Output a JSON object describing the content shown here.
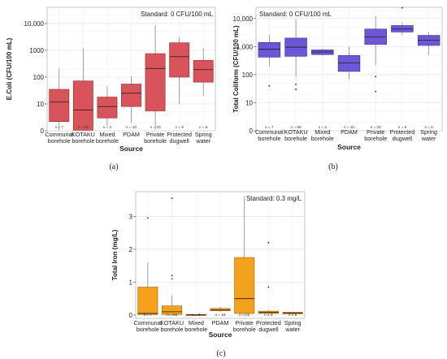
{
  "chart_data": [
    {
      "type": "boxplot",
      "label": "(a)",
      "ylabel": "E.Coli (CFU/100 mL)",
      "xlabel": "Source",
      "annotation": "Standard: 0 CFU/100 mL",
      "yscale": "log",
      "ylim": [
        1,
        40000
      ],
      "yticks": [
        1,
        10,
        100,
        1000,
        10000
      ],
      "ytick_labels": [
        "0",
        "10",
        "100",
        "1000",
        "10,000"
      ],
      "color": "#d9545a",
      "edge": "#8a2a2e",
      "categories": [
        "Communal\nborehole",
        "KOTAKU\nborehole",
        "Mixed\nborehole",
        "PDAM",
        "Private\nborehole",
        "Protected\ndugwell",
        "Spring\nwater"
      ],
      "n_labels": [
        "n = 7",
        "n = 58",
        "n = 3",
        "n = 10",
        "n = 20",
        "n = 9",
        "n = 6"
      ],
      "boxes": [
        {
          "whislo": 1,
          "q1": 2.2,
          "med": 12,
          "q3": 35,
          "whishi": 210,
          "fliers": []
        },
        {
          "whislo": 1,
          "q1": 1.05,
          "med": 6,
          "q3": 72,
          "whishi": 1200,
          "fliers": []
        },
        {
          "whislo": 1.5,
          "q1": 3,
          "med": 8,
          "q3": 18,
          "whishi": 45,
          "fliers": []
        },
        {
          "whislo": 2,
          "q1": 8,
          "med": 25,
          "q3": 55,
          "whishi": 110,
          "fliers": []
        },
        {
          "whislo": 1.1,
          "q1": 5.5,
          "med": 210,
          "q3": 750,
          "whishi": 8500,
          "fliers": []
        },
        {
          "whislo": 10,
          "q1": 100,
          "med": 580,
          "q3": 1900,
          "whishi": 3200,
          "fliers": []
        },
        {
          "whislo": 20,
          "q1": 65,
          "med": 190,
          "q3": 420,
          "whishi": 1200,
          "fliers": []
        }
      ]
    },
    {
      "type": "boxplot",
      "label": "(b)",
      "ylabel": "Total Coliform (CFU/100 mL)",
      "xlabel": "Source",
      "annotation": "Standard: 0 CFU/100 mL",
      "yscale": "log",
      "ylim": [
        1,
        25000
      ],
      "yticks": [
        1,
        10,
        100,
        1000,
        10000
      ],
      "ytick_labels": [
        "0",
        "10",
        "100",
        "1,000",
        "10,000"
      ],
      "color": "#6e57d6",
      "edge": "#3a2a8a",
      "categories": [
        "Communal\nborehole",
        "KOTAKU\nborehole",
        "Mixed\nborehole",
        "PDAM",
        "Private\nborehole",
        "Protected\ndugwell",
        "Spring\nwater"
      ],
      "n_labels": [
        "n = 7",
        "n = 58",
        "n = 3",
        "n = 10",
        "n = 20",
        "n = 9",
        "n = 6"
      ],
      "boxes": [
        {
          "whislo": 200,
          "q1": 420,
          "med": 800,
          "q3": 1400,
          "whishi": 2600,
          "fliers": [
            40
          ]
        },
        {
          "whislo": 80,
          "q1": 450,
          "med": 950,
          "q3": 2000,
          "whishi": 9500,
          "fliers": [
            30,
            45
          ]
        },
        {
          "whislo": 480,
          "q1": 520,
          "med": 640,
          "q3": 760,
          "whishi": 820,
          "fliers": []
        },
        {
          "whislo": 70,
          "q1": 130,
          "med": 260,
          "q3": 480,
          "whishi": 1000,
          "fliers": []
        },
        {
          "whislo": 220,
          "q1": 1200,
          "med": 2200,
          "q3": 4200,
          "whishi": 12000,
          "fliers": [
            25,
            85
          ]
        },
        {
          "whislo": 2600,
          "q1": 3300,
          "med": 4200,
          "q3": 5600,
          "whishi": 7200,
          "fliers": [
            24000
          ]
        },
        {
          "whislo": 500,
          "q1": 1100,
          "med": 1700,
          "q3": 2500,
          "whishi": 3200,
          "fliers": []
        }
      ]
    },
    {
      "type": "boxplot",
      "label": "(c)",
      "ylabel": "Total Iron (mg/L)",
      "xlabel": "Source",
      "annotation": "Standard: 0.3 mg/L",
      "yscale": "linear",
      "ylim": [
        -0.1,
        3.75
      ],
      "yticks": [
        0,
        1,
        2,
        3
      ],
      "ytick_labels": [
        "0",
        "1",
        "2",
        "3"
      ],
      "color": "#f4a21c",
      "edge": "#9a5f05",
      "categories": [
        "Communal\nborehole",
        "KOTAKU\nborehole",
        "Mixed\nborehole",
        "PDAM",
        "Private\nborehole",
        "Protected\ndugwell",
        "Spring\nwater"
      ],
      "n_labels": [
        "n = 7",
        "n = 58",
        "n = 3",
        "n = 10",
        "n = 20",
        "n = 9",
        "n = 6"
      ],
      "boxes": [
        {
          "whislo": 0,
          "q1": 0.02,
          "med": 0.05,
          "q3": 0.85,
          "whishi": 1.6,
          "fliers": [
            2.95
          ]
        },
        {
          "whislo": 0,
          "q1": 0.02,
          "med": 0.1,
          "q3": 0.28,
          "whishi": 0.6,
          "fliers": [
            1.1,
            1.2,
            3.55
          ]
        },
        {
          "whislo": 0,
          "q1": 0.005,
          "med": 0.01,
          "q3": 0.015,
          "whishi": 0.02,
          "fliers": []
        },
        {
          "whislo": 0.1,
          "q1": 0.13,
          "med": 0.16,
          "q3": 0.2,
          "whishi": 0.25,
          "fliers": []
        },
        {
          "whislo": 0,
          "q1": 0.05,
          "med": 0.5,
          "q3": 1.75,
          "whishi": 3.6,
          "fliers": []
        },
        {
          "whislo": 0,
          "q1": 0.05,
          "med": 0.08,
          "q3": 0.12,
          "whishi": 0.15,
          "fliers": [
            0.85,
            2.2
          ]
        },
        {
          "whislo": 0,
          "q1": 0.04,
          "med": 0.06,
          "q3": 0.09,
          "whishi": 0.1,
          "fliers": []
        }
      ]
    }
  ]
}
